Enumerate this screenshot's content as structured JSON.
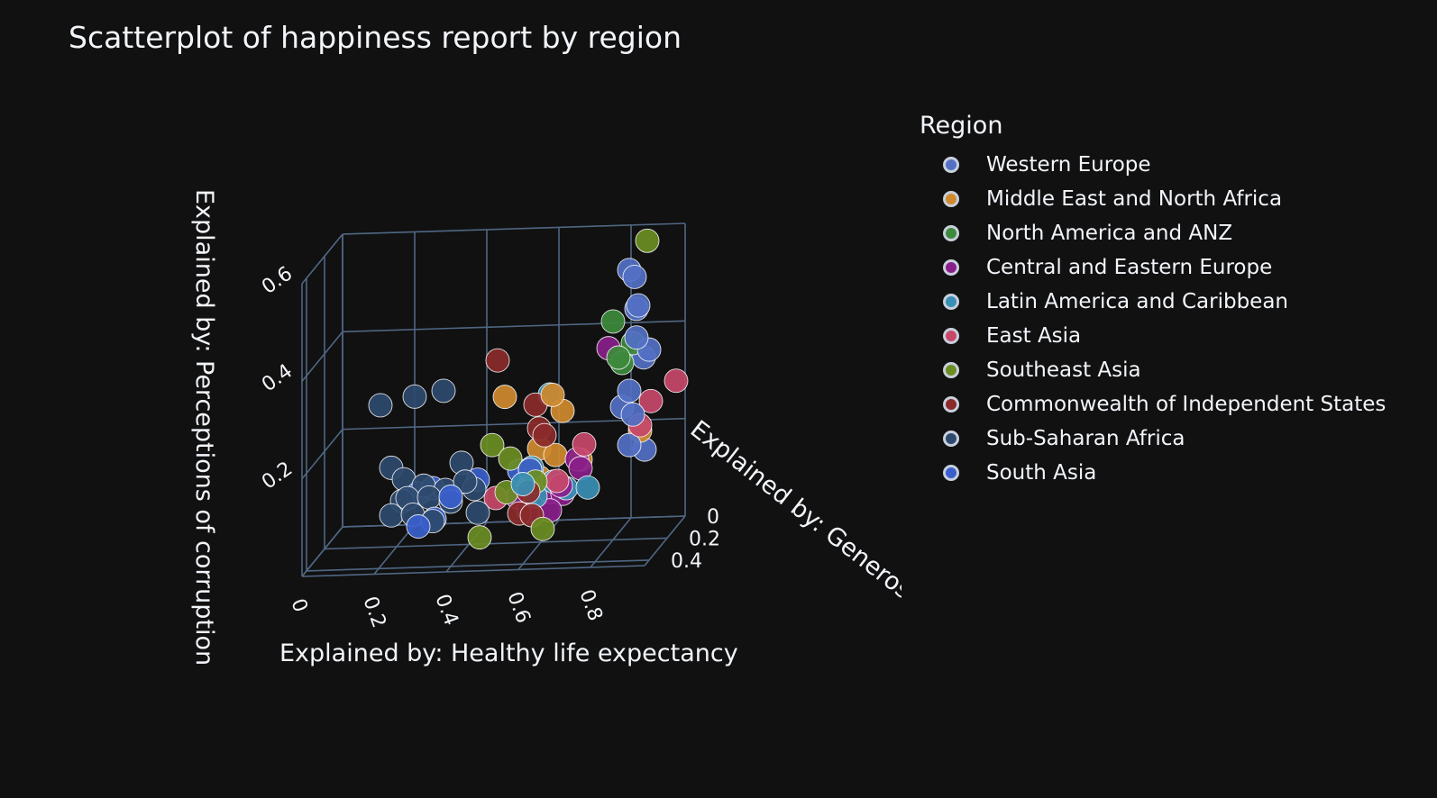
{
  "chart_data": {
    "type": "scatter",
    "title": "Scatterplot of happiness report by region",
    "xlabel": "Explained by: Healthy life expectancy",
    "ylabel": "Explained by: Generosity",
    "zlabel": "Explained by: Perceptions of corruption",
    "x_ticks": [
      "0",
      "0.2",
      "0.4",
      "0.6",
      "0.8"
    ],
    "y_ticks": [
      "0",
      "0.2",
      "0.4"
    ],
    "z_ticks": [
      "0.2",
      "0.4",
      "0.6"
    ],
    "xlim": [
      0,
      0.95
    ],
    "ylim": [
      0,
      0.45
    ],
    "zlim": [
      0,
      0.6
    ],
    "legend_title": "Region",
    "legend_position": "right",
    "grid": true,
    "series": [
      {
        "name": "Western Europe",
        "color": "#5370c4",
        "points": [
          [
            0.82,
            0.1,
            0.53
          ],
          [
            0.84,
            0.12,
            0.52
          ],
          [
            0.86,
            0.16,
            0.47
          ],
          [
            0.84,
            0.1,
            0.45
          ],
          [
            0.85,
            0.14,
            0.4
          ],
          [
            0.88,
            0.12,
            0.37
          ],
          [
            0.86,
            0.1,
            0.35
          ],
          [
            0.84,
            0.18,
            0.3
          ],
          [
            0.86,
            0.22,
            0.26
          ],
          [
            0.8,
            0.1,
            0.25
          ],
          [
            0.83,
            0.14,
            0.18
          ],
          [
            0.85,
            0.05,
            0.15
          ]
        ]
      },
      {
        "name": "Middle East and North Africa",
        "color": "#d08a2e",
        "points": [
          [
            0.5,
            0.2,
            0.3
          ],
          [
            0.62,
            0.15,
            0.29
          ],
          [
            0.64,
            0.12,
            0.25
          ],
          [
            0.57,
            0.1,
            0.17
          ],
          [
            0.62,
            0.12,
            0.16
          ],
          [
            0.58,
            0.14,
            0.12
          ],
          [
            0.55,
            0.14,
            0.1
          ],
          [
            0.85,
            0.1,
            0.2
          ],
          [
            0.68,
            0.08,
            0.14
          ]
        ]
      },
      {
        "name": "North America and ANZ",
        "color": "#3d8a3d",
        "points": [
          [
            0.78,
            0.12,
            0.43
          ],
          [
            0.83,
            0.1,
            0.38
          ],
          [
            0.8,
            0.14,
            0.36
          ],
          [
            0.8,
            0.1,
            0.34
          ]
        ]
      },
      {
        "name": "Central and Eastern Europe",
        "color": "#8a1e8a",
        "points": [
          [
            0.75,
            0.05,
            0.36
          ],
          [
            0.68,
            0.12,
            0.15
          ],
          [
            0.7,
            0.16,
            0.14
          ],
          [
            0.65,
            0.18,
            0.11
          ],
          [
            0.6,
            0.1,
            0.08
          ],
          [
            0.64,
            0.12,
            0.08
          ],
          [
            0.52,
            0.14,
            0.08
          ],
          [
            0.56,
            0.18,
            0.06
          ],
          [
            0.62,
            0.18,
            0.06
          ]
        ]
      },
      {
        "name": "Latin America and Caribbean",
        "color": "#3a8fb5",
        "points": [
          [
            0.6,
            0.1,
            0.28
          ],
          [
            0.56,
            0.14,
            0.14
          ],
          [
            0.66,
            0.16,
            0.1
          ],
          [
            0.62,
            0.14,
            0.11
          ],
          [
            0.58,
            0.18,
            0.09
          ],
          [
            0.72,
            0.16,
            0.1
          ],
          [
            0.55,
            0.2,
            0.12
          ]
        ]
      },
      {
        "name": "East Asia",
        "color": "#c8486a",
        "points": [
          [
            0.95,
            0.1,
            0.3
          ],
          [
            0.88,
            0.1,
            0.26
          ],
          [
            0.86,
            0.14,
            0.22
          ],
          [
            0.7,
            0.12,
            0.18
          ],
          [
            0.64,
            0.18,
            0.12
          ],
          [
            0.46,
            0.14,
            0.08
          ]
        ]
      },
      {
        "name": "Southeast Asia",
        "color": "#6b8e23",
        "points": [
          [
            0.86,
            0.06,
            0.58
          ],
          [
            0.44,
            0.1,
            0.18
          ],
          [
            0.5,
            0.14,
            0.16
          ],
          [
            0.56,
            0.16,
            0.14
          ],
          [
            0.58,
            0.18,
            0.12
          ],
          [
            0.5,
            0.18,
            0.1
          ],
          [
            0.62,
            0.26,
            0.04
          ],
          [
            0.46,
            0.32,
            0.04
          ]
        ]
      },
      {
        "name": "Commonwealth of Independent States",
        "color": "#8b2a2a",
        "points": [
          [
            0.44,
            0.04,
            0.34
          ],
          [
            0.56,
            0.1,
            0.26
          ],
          [
            0.58,
            0.14,
            0.22
          ],
          [
            0.6,
            0.16,
            0.21
          ],
          [
            0.54,
            0.2,
            0.06
          ],
          [
            0.58,
            0.22,
            0.06
          ],
          [
            0.56,
            0.18,
            0.1
          ]
        ]
      },
      {
        "name": "Sub-Saharan Africa",
        "color": "#2e4a6e",
        "points": [
          [
            0.12,
            0.06,
            0.26
          ],
          [
            0.22,
            0.08,
            0.28
          ],
          [
            0.3,
            0.08,
            0.29
          ],
          [
            0.16,
            0.1,
            0.14
          ],
          [
            0.2,
            0.12,
            0.12
          ],
          [
            0.26,
            0.14,
            0.11
          ],
          [
            0.22,
            0.16,
            0.09
          ],
          [
            0.28,
            0.16,
            0.09
          ],
          [
            0.32,
            0.14,
            0.1
          ],
          [
            0.34,
            0.16,
            0.08
          ],
          [
            0.18,
            0.18,
            0.06
          ],
          [
            0.24,
            0.18,
            0.06
          ],
          [
            0.3,
            0.2,
            0.05
          ],
          [
            0.38,
            0.16,
            0.12
          ],
          [
            0.4,
            0.14,
            0.1
          ],
          [
            0.36,
            0.12,
            0.15
          ],
          [
            0.42,
            0.18,
            0.06
          ],
          [
            0.2,
            0.14,
            0.08
          ]
        ]
      },
      {
        "name": "South Asia",
        "color": "#3a5fcd",
        "points": [
          [
            0.24,
            0.12,
            0.09
          ],
          [
            0.28,
            0.12,
            0.1
          ],
          [
            0.4,
            0.1,
            0.11
          ],
          [
            0.34,
            0.16,
            0.09
          ],
          [
            0.26,
            0.2,
            0.04
          ],
          [
            0.3,
            0.18,
            0.05
          ],
          [
            0.52,
            0.12,
            0.13
          ],
          [
            0.56,
            0.16,
            0.14
          ]
        ]
      }
    ]
  }
}
